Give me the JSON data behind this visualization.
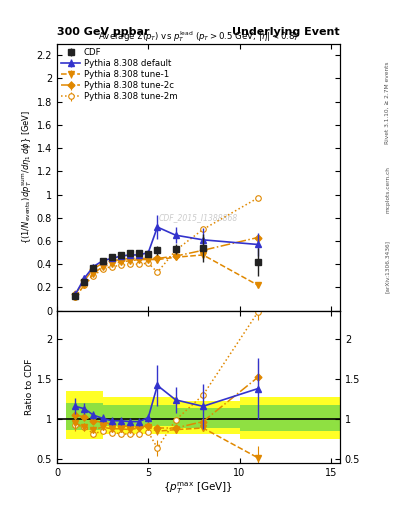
{
  "title_left": "300 GeV ppbar",
  "title_right": "Underlying Event",
  "right_label": "Rivet 3.1.10, ≥ 2.7M events",
  "arxiv_label": "[arXiv:1306.3436]",
  "mcplots_label": "mcplots.cern.ch",
  "plot_title": "Average Σ(p$_T$) vs p$_T^{lead}$ (p$_T$ > 0.5 GeV, |$\\eta$| < 0.8)",
  "watermark": "CDF_2015_I1388868",
  "ylabel_main": "{(1/N$_{events}$) dp$_T^{sum}$/d$\\eta_1$ d$\\phi$} [GeV]",
  "ylabel_ratio": "Ratio to CDF",
  "xlabel": "{p$_T^{max}$ [GeV]}",
  "main_ylim": [
    0.0,
    2.3
  ],
  "ratio_ylim": [
    0.45,
    2.35
  ],
  "xlim": [
    0.0,
    15.5
  ],
  "cdf_x": [
    1.0,
    1.5,
    2.0,
    2.5,
    3.0,
    3.5,
    4.0,
    4.5,
    5.0,
    5.5,
    6.5,
    8.0,
    11.0
  ],
  "cdf_y": [
    0.13,
    0.25,
    0.37,
    0.43,
    0.46,
    0.48,
    0.5,
    0.5,
    0.49,
    0.52,
    0.53,
    0.54,
    0.42
  ],
  "cdf_yerr": [
    0.02,
    0.02,
    0.02,
    0.02,
    0.02,
    0.02,
    0.02,
    0.02,
    0.02,
    0.04,
    0.04,
    0.12,
    0.12
  ],
  "default_x": [
    1.0,
    1.5,
    2.0,
    2.5,
    3.0,
    3.5,
    4.0,
    4.5,
    5.0,
    5.5,
    6.5,
    8.0,
    11.0
  ],
  "default_y": [
    0.14,
    0.28,
    0.38,
    0.43,
    0.45,
    0.47,
    0.48,
    0.48,
    0.5,
    0.72,
    0.65,
    0.61,
    0.57
  ],
  "default_yerr": [
    0.01,
    0.01,
    0.01,
    0.01,
    0.01,
    0.01,
    0.01,
    0.01,
    0.01,
    0.1,
    0.07,
    0.1,
    0.1
  ],
  "tune1_x": [
    1.0,
    1.5,
    2.0,
    2.5,
    3.0,
    3.5,
    4.0,
    4.5,
    5.0,
    5.5,
    6.5,
    8.0,
    11.0
  ],
  "tune1_y": [
    0.12,
    0.22,
    0.32,
    0.38,
    0.4,
    0.42,
    0.43,
    0.44,
    0.44,
    0.44,
    0.46,
    0.48,
    0.22
  ],
  "tune1_yerr": [
    0.005,
    0.005,
    0.005,
    0.005,
    0.005,
    0.005,
    0.005,
    0.005,
    0.005,
    0.005,
    0.005,
    0.005,
    0.005
  ],
  "tune2c_x": [
    1.0,
    1.5,
    2.0,
    2.5,
    3.0,
    3.5,
    4.0,
    4.5,
    5.0,
    5.5,
    6.5,
    8.0,
    11.0
  ],
  "tune2c_y": [
    0.14,
    0.26,
    0.36,
    0.41,
    0.43,
    0.44,
    0.45,
    0.45,
    0.45,
    0.45,
    0.47,
    0.52,
    0.63
  ],
  "tune2c_yerr": [
    0.005,
    0.005,
    0.005,
    0.005,
    0.005,
    0.005,
    0.005,
    0.005,
    0.005,
    0.005,
    0.005,
    0.005,
    0.005
  ],
  "tune2m_x": [
    1.0,
    1.5,
    2.0,
    2.5,
    3.0,
    3.5,
    4.0,
    4.5,
    5.0,
    5.5,
    6.5,
    8.0,
    11.0
  ],
  "tune2m_y": [
    0.12,
    0.22,
    0.3,
    0.36,
    0.38,
    0.39,
    0.4,
    0.4,
    0.41,
    0.33,
    0.52,
    0.7,
    0.97
  ],
  "tune2m_yerr": [
    0.005,
    0.005,
    0.005,
    0.005,
    0.005,
    0.005,
    0.005,
    0.005,
    0.005,
    0.005,
    0.005,
    0.005,
    0.005
  ],
  "ratio_default_x": [
    1.0,
    1.5,
    2.0,
    2.5,
    3.0,
    3.5,
    4.0,
    4.5,
    5.0,
    5.5,
    6.5,
    8.0,
    11.0
  ],
  "ratio_default_y": [
    1.16,
    1.13,
    1.05,
    1.01,
    0.98,
    0.98,
    0.97,
    0.97,
    1.02,
    1.42,
    1.24,
    1.16,
    1.38
  ],
  "ratio_default_yerr": [
    0.1,
    0.07,
    0.05,
    0.05,
    0.05,
    0.05,
    0.05,
    0.05,
    0.05,
    0.25,
    0.16,
    0.28,
    0.38
  ],
  "ratio_tune1_x": [
    1.0,
    1.5,
    2.0,
    2.5,
    3.0,
    3.5,
    4.0,
    4.5,
    5.0,
    5.5,
    6.5,
    8.0,
    11.0
  ],
  "ratio_tune1_y": [
    0.95,
    0.9,
    0.87,
    0.9,
    0.88,
    0.88,
    0.87,
    0.89,
    0.9,
    0.85,
    0.87,
    0.89,
    0.52
  ],
  "ratio_tune1_yerr": [
    0.08,
    0.05,
    0.04,
    0.04,
    0.04,
    0.04,
    0.03,
    0.03,
    0.03,
    0.05,
    0.04,
    0.04,
    0.15
  ],
  "ratio_tune2c_x": [
    1.0,
    1.5,
    2.0,
    2.5,
    3.0,
    3.5,
    4.0,
    4.5,
    5.0,
    5.5,
    6.5,
    8.0,
    11.0
  ],
  "ratio_tune2c_y": [
    1.05,
    1.03,
    0.98,
    0.96,
    0.94,
    0.92,
    0.91,
    0.9,
    0.92,
    0.89,
    0.89,
    0.97,
    1.52
  ],
  "ratio_tune2c_yerr": [
    0.08,
    0.05,
    0.04,
    0.04,
    0.04,
    0.04,
    0.03,
    0.03,
    0.03,
    0.04,
    0.03,
    0.04,
    0.2
  ],
  "ratio_tune2m_x": [
    1.0,
    1.5,
    2.0,
    2.5,
    3.0,
    3.5,
    4.0,
    4.5,
    5.0,
    5.5,
    6.5,
    8.0,
    11.0
  ],
  "ratio_tune2m_y": [
    0.93,
    0.9,
    0.82,
    0.85,
    0.83,
    0.82,
    0.81,
    0.81,
    0.84,
    0.64,
    0.99,
    1.3,
    2.33
  ],
  "ratio_tune2m_yerr": [
    0.08,
    0.05,
    0.04,
    0.04,
    0.04,
    0.04,
    0.03,
    0.03,
    0.03,
    0.1,
    0.04,
    0.05,
    0.1
  ],
  "color_cdf": "#222222",
  "color_default": "#3333cc",
  "color_orange": "#e08800",
  "band_yellow_xedges": [
    0.5,
    2.5,
    6.5,
    10.0,
    15.5
  ],
  "band_yellow_lo": [
    0.75,
    0.82,
    0.82,
    0.75,
    0.75
  ],
  "band_yellow_hi": [
    1.35,
    1.28,
    1.22,
    1.28,
    1.28
  ],
  "band_green_xedges": [
    0.5,
    2.5,
    6.5,
    10.0,
    15.5
  ],
  "band_green_lo": [
    0.86,
    0.91,
    0.89,
    0.85,
    0.85
  ],
  "band_green_hi": [
    1.2,
    1.18,
    1.14,
    1.18,
    1.18
  ]
}
